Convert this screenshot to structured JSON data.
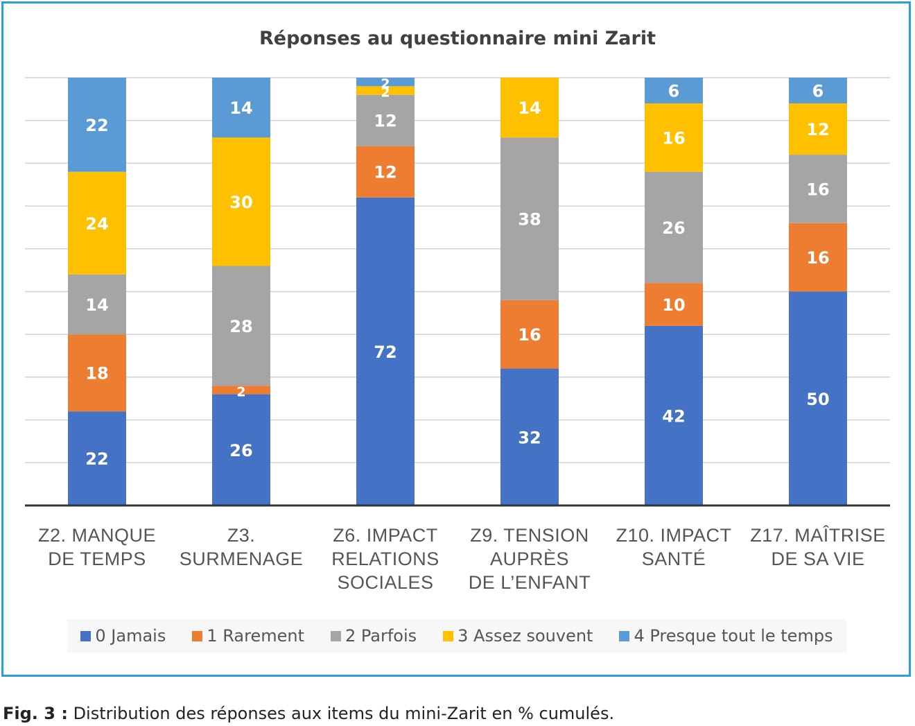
{
  "chart_data": {
    "type": "bar",
    "stacked": true,
    "title": "Réponses au questionnaire mini Zarit",
    "categories": [
      [
        "Z2. MANQUE",
        "DE TEMPS"
      ],
      [
        "Z3. SURMENAGE"
      ],
      [
        "Z6. IMPACT",
        "RELATIONS",
        "SOCIALES"
      ],
      [
        "Z9. TENSION",
        "AUPRÈS",
        "DE L’ENFANT"
      ],
      [
        "Z10. IMPACT",
        "SANTÉ"
      ],
      [
        "Z17. MAÎTRISE",
        "DE SA VIE"
      ]
    ],
    "series": [
      {
        "name": "0 Jamais",
        "color": "#4472c4",
        "values": [
          22,
          26,
          72,
          32,
          42,
          50
        ]
      },
      {
        "name": "1 Rarement",
        "color": "#ed7d31",
        "values": [
          18,
          2,
          12,
          16,
          10,
          16
        ]
      },
      {
        "name": "2 Parfois",
        "color": "#a5a5a5",
        "values": [
          14,
          28,
          12,
          38,
          26,
          16
        ]
      },
      {
        "name": "3 Assez souvent",
        "color": "#ffc000",
        "values": [
          24,
          30,
          2,
          14,
          16,
          12
        ]
      },
      {
        "name": "4 Presque tout le temps",
        "color": "#5b9bd5",
        "values": [
          22,
          14,
          2,
          0,
          6,
          6
        ]
      }
    ],
    "ylim": [
      0,
      100
    ],
    "grid": true,
    "legend": "bottom"
  },
  "caption": {
    "label": "Fig. 3 :",
    "text": " Distribution des réponses aux items du mini-Zarit en % cumulés."
  }
}
